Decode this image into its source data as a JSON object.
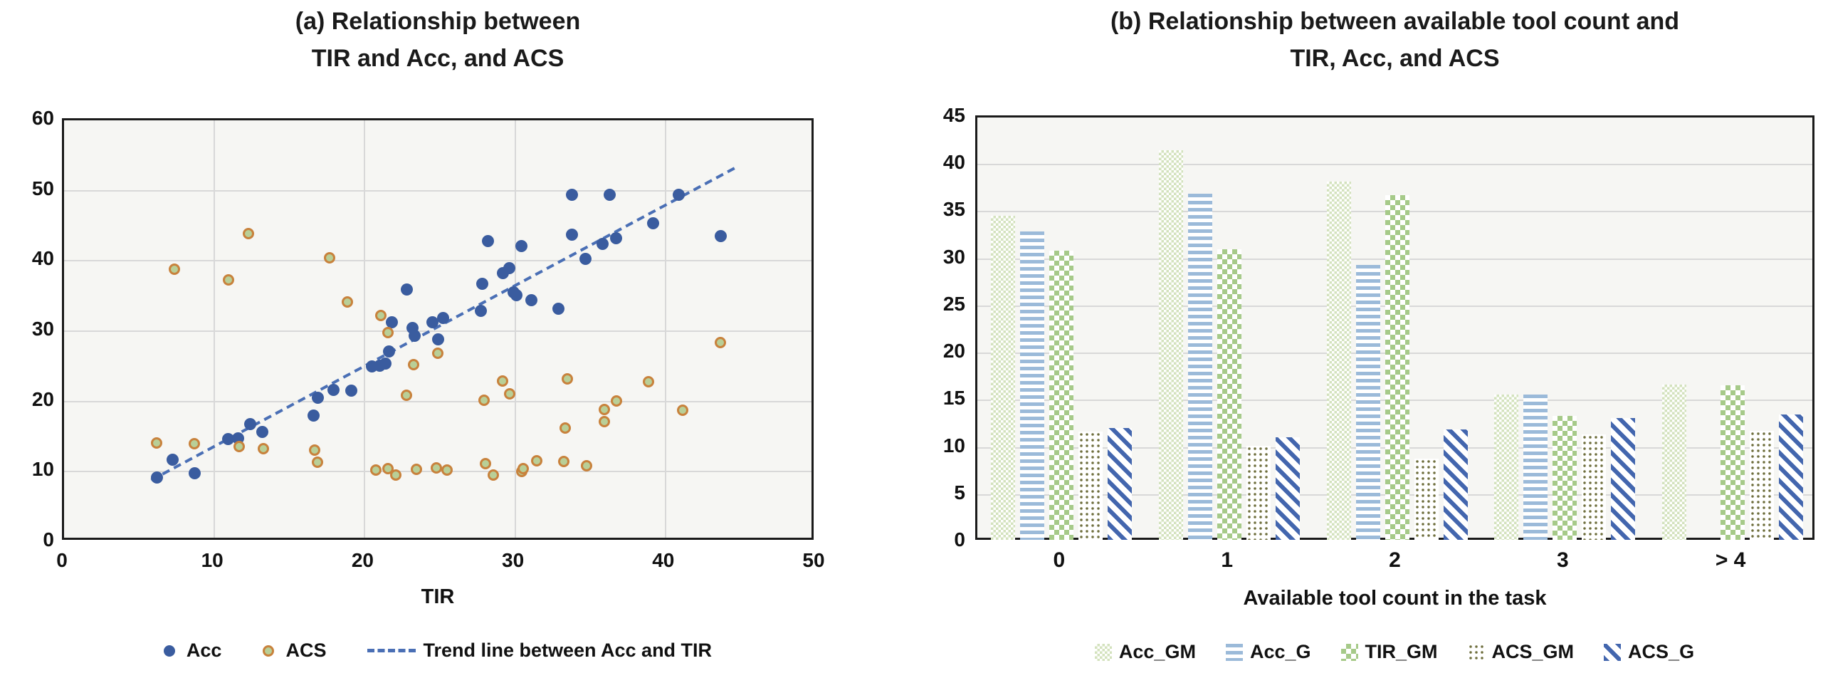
{
  "figure": {
    "background": "#ffffff",
    "plot_background": "#f6f6f3",
    "gridline_color": "#d8d8d8",
    "text_color": "#1a1a1a"
  },
  "chart_data": [
    {
      "id": "scatter",
      "type": "scatter",
      "title_lines": [
        "(a) Relationship between",
        "TIR and Acc, and ACS"
      ],
      "xlabel": "TIR",
      "xlim": [
        0,
        50
      ],
      "ylim": [
        0,
        60
      ],
      "xticks": [
        0,
        10,
        20,
        30,
        40,
        50
      ],
      "yticks": [
        0,
        10,
        20,
        30,
        40,
        50,
        60
      ],
      "grid": true,
      "legend_position": "bottom",
      "series": [
        {
          "name": "Acc",
          "marker": "circle",
          "color": "#3a5c9f",
          "points": [
            [
              6.2,
              9.2
            ],
            [
              7.2,
              11.7
            ],
            [
              8.7,
              9.8
            ],
            [
              10.9,
              14.6
            ],
            [
              11.6,
              14.7
            ],
            [
              12.4,
              16.8
            ],
            [
              13.2,
              15.7
            ],
            [
              16.6,
              18.0
            ],
            [
              16.9,
              20.5
            ],
            [
              17.9,
              21.6
            ],
            [
              19.1,
              21.5
            ],
            [
              20.5,
              25.0
            ],
            [
              21.0,
              25.1
            ],
            [
              21.4,
              25.4
            ],
            [
              21.6,
              27.1
            ],
            [
              21.8,
              31.3
            ],
            [
              22.8,
              35.9
            ],
            [
              23.2,
              30.5
            ],
            [
              23.3,
              29.3
            ],
            [
              24.5,
              31.3
            ],
            [
              24.9,
              28.8
            ],
            [
              25.2,
              31.9
            ],
            [
              27.7,
              32.9
            ],
            [
              27.8,
              36.7
            ],
            [
              28.2,
              42.8
            ],
            [
              29.2,
              38.3
            ],
            [
              29.6,
              39.0
            ],
            [
              29.9,
              35.5
            ],
            [
              30.1,
              35.1
            ],
            [
              30.4,
              42.1
            ],
            [
              31.1,
              34.4
            ],
            [
              32.9,
              33.2
            ],
            [
              33.8,
              43.7
            ],
            [
              33.8,
              49.4
            ],
            [
              34.7,
              40.3
            ],
            [
              35.8,
              42.4
            ],
            [
              36.7,
              43.2
            ],
            [
              36.3,
              49.4
            ],
            [
              39.2,
              45.4
            ],
            [
              40.9,
              49.4
            ],
            [
              43.7,
              43.5
            ]
          ]
        },
        {
          "name": "ACS",
          "marker": "circle",
          "fill": "#b9cf97",
          "border": "#c8823c",
          "points": [
            [
              7.4,
              38.7
            ],
            [
              11.0,
              37.2
            ],
            [
              12.3,
              43.8
            ],
            [
              17.7,
              40.3
            ],
            [
              18.9,
              34.1
            ],
            [
              21.1,
              32.1
            ],
            [
              21.6,
              29.7
            ],
            [
              23.3,
              25.1
            ],
            [
              24.9,
              26.8
            ],
            [
              22.8,
              20.8
            ],
            [
              28.0,
              20.1
            ],
            [
              29.2,
              22.8
            ],
            [
              29.7,
              21.0
            ],
            [
              33.5,
              23.1
            ],
            [
              33.4,
              16.1
            ],
            [
              36.0,
              18.7
            ],
            [
              36.0,
              17.0
            ],
            [
              36.8,
              20.0
            ],
            [
              38.9,
              22.7
            ],
            [
              41.2,
              18.6
            ],
            [
              43.7,
              28.3
            ],
            [
              6.2,
              14.0
            ],
            [
              8.7,
              13.9
            ],
            [
              11.7,
              13.5
            ],
            [
              13.3,
              13.2
            ],
            [
              16.7,
              13.0
            ],
            [
              16.9,
              11.3
            ],
            [
              20.8,
              10.1
            ],
            [
              21.6,
              10.3
            ],
            [
              22.1,
              9.4
            ],
            [
              23.5,
              10.2
            ],
            [
              24.8,
              10.4
            ],
            [
              25.5,
              10.1
            ],
            [
              28.1,
              11.0
            ],
            [
              28.6,
              9.4
            ],
            [
              30.5,
              9.9
            ],
            [
              30.6,
              10.3
            ],
            [
              31.5,
              11.5
            ],
            [
              33.3,
              11.4
            ],
            [
              34.8,
              10.7
            ]
          ]
        }
      ],
      "trend": {
        "name": "Trend line between Acc and TIR",
        "color": "#4a6fb5",
        "style": "dashed",
        "from": [
          5.8,
          8.8
        ],
        "to": [
          44.6,
          53.2
        ]
      }
    },
    {
      "id": "bars",
      "type": "bar",
      "title_lines": [
        "(b) Relationship between available tool count and",
        "TIR, Acc, and ACS"
      ],
      "xlabel": "Available tool count in the task",
      "ylim": [
        0,
        45
      ],
      "yticks": [
        0,
        5,
        10,
        15,
        20,
        25,
        30,
        35,
        40,
        45
      ],
      "grid": true,
      "legend_position": "bottom",
      "categories": [
        "0",
        "1",
        "2",
        "3",
        "> 4"
      ],
      "series": [
        {
          "name": "Acc_GM",
          "pattern": "fine-check",
          "color": "#d3e2bd",
          "values": [
            34.6,
            41.5,
            38.2,
            15.6,
            16.7
          ]
        },
        {
          "name": "Acc_G",
          "pattern": "h-stripes",
          "color": "#9bbad9",
          "values": [
            32.9,
            36.9,
            29.4,
            15.6,
            null
          ]
        },
        {
          "name": "TIR_GM",
          "pattern": "check",
          "color": "#a6ca89",
          "values": [
            30.9,
            31.0,
            36.8,
            13.4,
            16.6
          ]
        },
        {
          "name": "ACS_GM",
          "pattern": "dots",
          "color": "#6e6e3c",
          "values": [
            11.7,
            10.2,
            8.8,
            11.4,
            11.8
          ]
        },
        {
          "name": "ACS_G",
          "pattern": "diag-stripes",
          "color": "#4366ae",
          "values": [
            12.1,
            11.1,
            11.9,
            13.1,
            13.5
          ]
        }
      ]
    }
  ]
}
